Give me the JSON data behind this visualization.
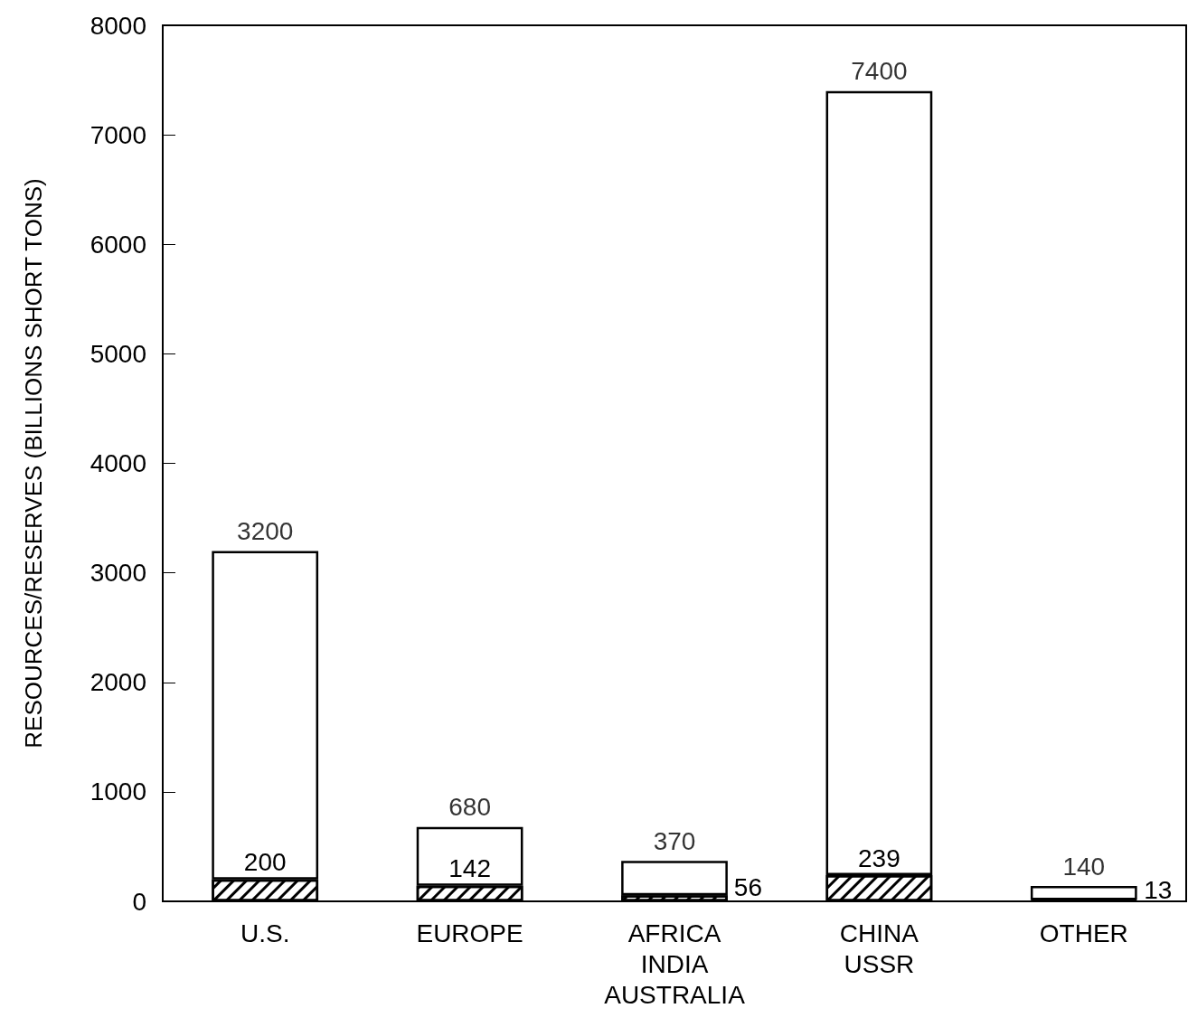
{
  "chart_data": {
    "type": "bar",
    "ylabel": "RESOURCES/RESERVES (BILLIONS SHORT TONS)",
    "categories": [
      "U.S.",
      "EUROPE",
      "AFRICA\nINDIA\nAUSTRALIA",
      "CHINA\nUSSR",
      "OTHER"
    ],
    "stacked": true,
    "series": [
      {
        "color": "#000000",
        "values": [
          200,
          142,
          56,
          239,
          13
        ],
        "value_labels": [
          "200",
          "142",
          "56",
          "239",
          "13"
        ]
      },
      {
        "color": "#ffffff",
        "values": [
          3000,
          538,
          314,
          7161,
          127
        ]
      }
    ],
    "totals": [
      "3200",
      "680",
      "370",
      "7400",
      "140"
    ],
    "ylim": [
      0,
      8000
    ],
    "yticks": [
      0,
      1000,
      2000,
      3000,
      4000,
      5000,
      6000,
      7000,
      8000
    ],
    "grid": false
  }
}
